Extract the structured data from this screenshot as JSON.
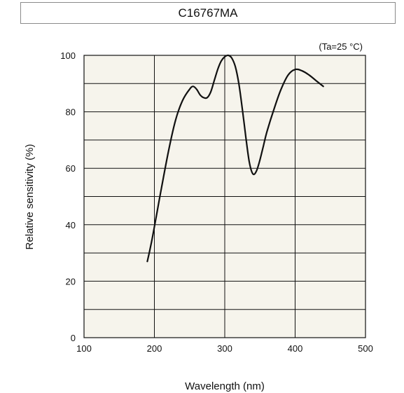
{
  "chart_data": {
    "type": "line",
    "title": "C16767MA",
    "condition": "(Ta=25 °C)",
    "xlabel": "Wavelength (nm)",
    "ylabel": "Relative sensitivity (%)",
    "xlim": [
      100,
      500
    ],
    "ylim": [
      0,
      100
    ],
    "xticks": [
      100,
      200,
      300,
      400,
      500
    ],
    "yticks": [
      0,
      20,
      40,
      60,
      80,
      100
    ],
    "grid": true,
    "series": [
      {
        "x": [
          190,
          196,
          202,
          210,
          220,
          230,
          240,
          250,
          255,
          260,
          265,
          270,
          275,
          280,
          285,
          290,
          295,
          300,
          305,
          310,
          315,
          320,
          325,
          330,
          335,
          340,
          345,
          350,
          355,
          360,
          370,
          380,
          390,
          400,
          410,
          420,
          430,
          440
        ],
        "y": [
          27,
          34,
          42,
          53,
          66,
          77,
          84,
          88,
          89,
          88,
          86,
          85,
          85,
          87,
          91,
          95,
          98,
          99.5,
          100,
          99,
          96,
          90,
          81,
          71,
          62,
          58,
          59,
          63,
          68,
          73,
          81,
          88,
          93,
          95,
          94.5,
          93,
          91,
          89
        ]
      }
    ]
  }
}
